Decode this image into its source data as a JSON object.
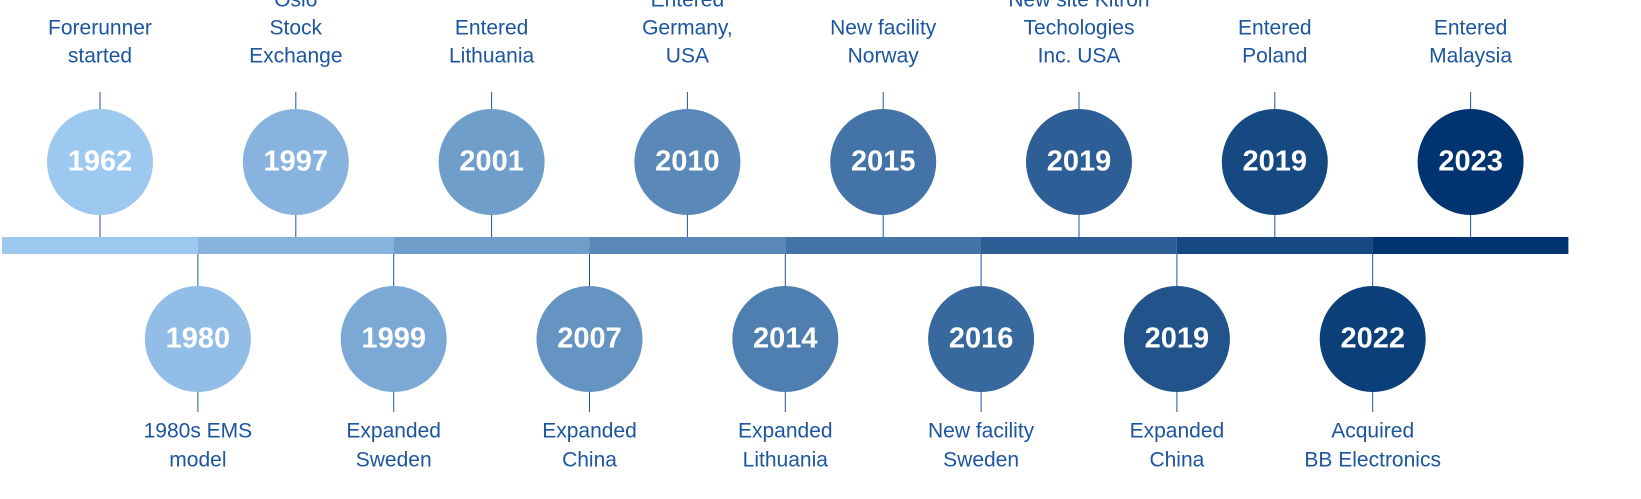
{
  "events": [
    {
      "year": "1962",
      "label": [
        "Forerunner",
        "started"
      ]
    },
    {
      "year": "1980",
      "label": [
        "1980s EMS",
        "model"
      ]
    },
    {
      "year": "1997",
      "label": [
        "Oslo",
        "Stock",
        "Exchange"
      ]
    },
    {
      "year": "1999",
      "label": [
        "Expanded",
        "Sweden"
      ]
    },
    {
      "year": "2001",
      "label": [
        "Entered",
        "Lithuania"
      ]
    },
    {
      "year": "2007",
      "label": [
        "Expanded",
        "China"
      ]
    },
    {
      "year": "2010",
      "label": [
        "Entered",
        "Germany,",
        "USA"
      ]
    },
    {
      "year": "2014",
      "label": [
        "Expanded",
        "Lithuania"
      ]
    },
    {
      "year": "2015",
      "label": [
        "New facility",
        "Norway"
      ]
    },
    {
      "year": "2016",
      "label": [
        "New facility",
        "Sweden"
      ]
    },
    {
      "year": "2019",
      "label": [
        "New site Kitron",
        "Techologies",
        "Inc. USA"
      ]
    },
    {
      "year": "2019",
      "label": [
        "Expanded",
        "China"
      ]
    },
    {
      "year": "2019",
      "label": [
        "Entered",
        "Poland"
      ]
    },
    {
      "year": "2022",
      "label": [
        "Acquired",
        "BB Electronics"
      ]
    },
    {
      "year": "2023",
      "label": [
        "Entered",
        "Malaysia"
      ]
    }
  ]
}
